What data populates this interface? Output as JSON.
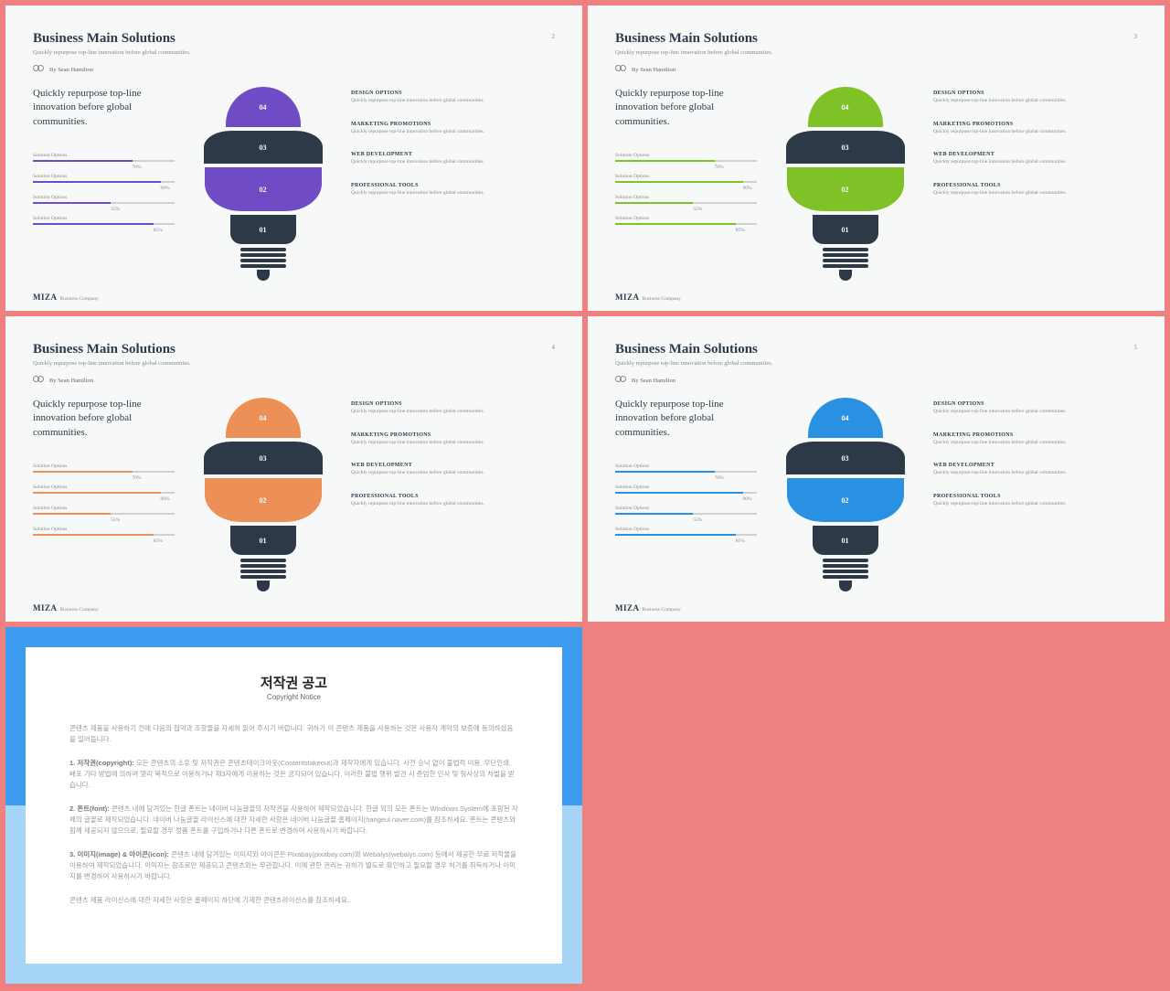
{
  "slides": [
    {
      "num": "2",
      "accent": "#6f4bc6"
    },
    {
      "num": "3",
      "accent": "#7fc228"
    },
    {
      "num": "4",
      "accent": "#ed9058"
    },
    {
      "num": "5",
      "accent": "#2a91e2"
    }
  ],
  "common": {
    "title": "Business Main Solutions",
    "subtitle": "Quickly repurpose top-line innovation before global communities.",
    "author": "By Sean Hamilton",
    "headline": "Quickly repurpose top-line innovation before global communities.",
    "darkSeg": "#2d3947",
    "options": [
      {
        "label": "Solution Options",
        "pct": 70,
        "txt": "70%"
      },
      {
        "label": "Solution Options",
        "pct": 90,
        "txt": "90%"
      },
      {
        "label": "Solution Options",
        "pct": 55,
        "txt": "55%"
      },
      {
        "label": "Solution Options",
        "pct": 85,
        "txt": "85%"
      }
    ],
    "segs": [
      "04",
      "03",
      "02",
      "01"
    ],
    "right": [
      {
        "t": "DESIGN OPTIONS",
        "d": "Quickly repurpose top-line innovation before global communities."
      },
      {
        "t": "MARKETING PROMOTIONS",
        "d": "Quickly repurpose top-line innovation before global communities."
      },
      {
        "t": "WEB DEVELOPMENT",
        "d": "Quickly repurpose top-line innovation before global communities."
      },
      {
        "t": "PROFESSIONAL TOOLS",
        "d": "Quickly repurpose top-line innovation before global communities."
      }
    ],
    "footer": {
      "logo": "MIZA",
      "tag": "Business Company"
    }
  },
  "copyright": {
    "title": "저작권 공고",
    "sub": "Copyright Notice",
    "p0": "콘텐츠 제품을 사용하기 전에 다음의 협약과 조항들을 자세히 읽어 주시기 바랍니다. 귀하가 이 콘텐츠 제품을 사용하는 것은 사용자 계약의 보증에 동의하셨음을 일러둡니다.",
    "p1b": "1. 저작권(copyright):",
    "p1": " 모든 콘텐츠의 소유 및 저작권은 콘텐츠테이크아웃(Contentstakeout)과 제작자에게 있습니다. 사전 승낙 없이 불법적 이용, 무단인쇄, 배포 기타 방법에 의하여 영리 목적으로 이용하거나 제3자에게 이용하는 것은 금지되어 있습니다. 이러한 불법 행위 발견 시 준엄한 민사 및 형사상의 처벌을 받습니다.",
    "p2b": "2. 폰트(font):",
    "p2": " 콘텐츠 내에 담겨있는 한글 폰트는 네이버 나눔글꼴의 저작권을 사용하여 제작되었습니다. 한글 외의 모든 폰트는 Windows System에 포함된 자체의 글꼴로 제작되었습니다. 네이버 나눔글꼴 라이선스에 대한 자세한 사항은 네이버 나눔글꼴 홈페이지(hangeul.naver.com)를 참조하세요. 폰트는 콘텐츠와 함께 제공되지 않으므로, 필요할 경우 정품 폰트를 구입하거나 다른 폰트로 변경하여 사용하시기 바랍니다.",
    "p3b": "3. 이미지(image) & 아이콘(icon):",
    "p3": " 콘텐츠 내에 담겨있는 이미지와 아이콘은 Pixabay(pixabay.com)와 Webalys(webalys.com) 등에서 제공한 무료 저작물을 이용하여 제작되었습니다. 이미지는 참조로만 제공되고 콘텐츠와는 무관합니다. 이에 관한 권리는 귀하가 별도로 확인하고 필요할 경우 허가를 취득하거나 이미지를 변경하여 사용하시기 바랍니다.",
    "p4": "콘텐츠 제품 라이선스에 대한 자세한 사항은 홈페이지 하단에 기재한 콘텐츠라이선스를 참조하세요."
  }
}
